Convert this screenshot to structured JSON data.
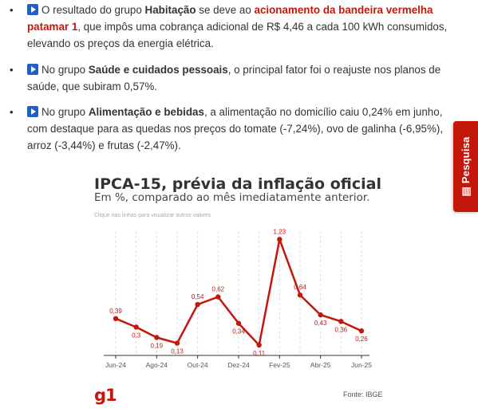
{
  "bullets": [
    {
      "parts_before": "O resultado do grupo ",
      "group": "Habitação",
      "parts_mid": " se deve ao ",
      "highlight": "acionamento da bandeira vermelha patamar 1",
      "parts_after": ", que impôs uma cobrança adicional de R$ 4,46 a cada 100 kWh consumidos, elevando os preços da energia elétrica."
    },
    {
      "parts_before": "No grupo ",
      "group": "Saúde e cuidados pessoais",
      "parts_after": ", o principal fator foi o reajuste nos planos de saúde, que subiram 0,57%."
    },
    {
      "parts_before": "No grupo ",
      "group": "Alimentação e bebidas",
      "parts_after": ", a alimentação no domicílio caiu 0,24% em junho, com destaque para as quedas nos preços do tomate (-7,24%), ovo de galinha (-6,95%), arroz (-3,44%) e frutas (-2,47%)."
    }
  ],
  "side_tab": {
    "label": "Pesquisa"
  },
  "chart_data": {
    "type": "line",
    "title": "IPCA-15, prévia da inflação oficial",
    "subtitle": "Em %, comparado ao mês imediatamente anterior.",
    "hint": "Clique nas linhas para visualizar outros valores",
    "x": [
      "Jun-24",
      "Jul-24",
      "Ago-24",
      "Set-24",
      "Out-24",
      "Nov-24",
      "Dez-24",
      "Jan-25",
      "Fev-25",
      "Mar-25",
      "Abr-25",
      "Mai-25",
      "Jun-25"
    ],
    "x_tick_labels": [
      "Jun-24",
      "Ago-24",
      "Out-24",
      "Dez-24",
      "Fev-25",
      "Abr-25",
      "Jun-25"
    ],
    "values": [
      0.39,
      0.3,
      0.19,
      0.13,
      0.54,
      0.62,
      0.34,
      0.11,
      1.23,
      0.64,
      0.43,
      0.36,
      0.26
    ],
    "value_labels": [
      "0,39",
      "0,3",
      "0,19",
      "0,13",
      "0,54",
      "0,62",
      "0,34",
      "0,11",
      "1,23",
      "0,64",
      "0,43",
      "0,36",
      "0,26"
    ],
    "ylim": [
      0,
      1.25
    ],
    "grid": "vertical",
    "color": "#c4170c"
  },
  "footer": {
    "logo": "g1",
    "source": "Fonte: IBGE"
  }
}
